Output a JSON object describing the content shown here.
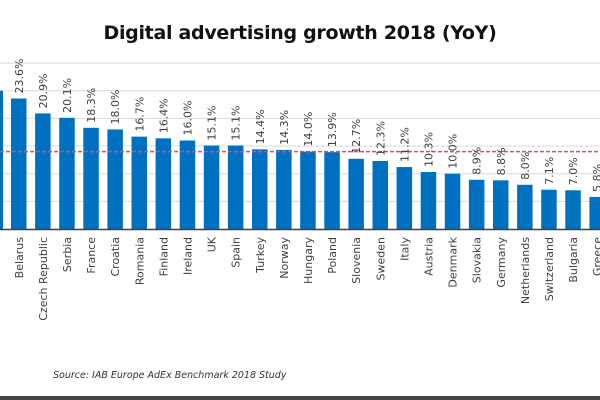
{
  "chart_data": {
    "type": "bar",
    "title": "Digital advertising growth 2018 (YoY)",
    "xlabel": "",
    "ylabel": "",
    "ylim": [
      0,
      30
    ],
    "grid": true,
    "gridline_step": 5,
    "average_line": 14.0,
    "partial_leading_bar_value": 25.0,
    "categories": [
      "Belarus",
      "Czech Republic",
      "Serbia",
      "France",
      "Croatia",
      "Romania",
      "Finland",
      "Ireland",
      "UK",
      "Spain",
      "Turkey",
      "Norway",
      "Hungary",
      "Poland",
      "Slovenia",
      "Sweden",
      "Italy",
      "Austria",
      "Denmark",
      "Slovakia",
      "Germany",
      "Netherlands",
      "Switzerland",
      "Bulgaria",
      "Greece"
    ],
    "values": [
      23.6,
      20.9,
      20.1,
      18.3,
      18.0,
      16.7,
      16.4,
      16.0,
      15.1,
      15.1,
      14.4,
      14.3,
      14.0,
      13.9,
      12.7,
      12.3,
      11.2,
      10.3,
      10.0,
      8.9,
      8.8,
      8.0,
      7.1,
      7.0,
      5.8
    ],
    "labels": [
      "23.6%",
      "20.9%",
      "20.1%",
      "18.3%",
      "18.0%",
      "16.7%",
      "16.4%",
      "16.0%",
      "15.1%",
      "15.1%",
      "14.4%",
      "14.3%",
      "14.0%",
      "13.9%",
      "12.7%",
      "12.3%",
      "11.2%",
      "10.3%",
      "10.0%",
      "8.9%",
      "8.8%",
      "8.0%",
      "7.1%",
      "7.0%",
      "5.8%"
    ],
    "colors": {
      "bar": "#0070c0",
      "average_line": "#e8417f",
      "grid": "#d9d9d9",
      "axis": "#404040",
      "label": "#404040"
    }
  },
  "source": "Source: IAB Europe AdEx Benchmark 2018 Study"
}
